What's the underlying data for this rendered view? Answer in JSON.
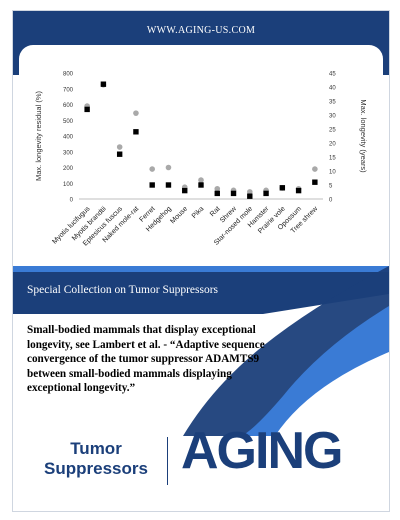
{
  "header": {
    "url": "WWW.AGING-US.COM"
  },
  "colors": {
    "brand_blue": "#1b3f7a",
    "light_blue": "#3a7bd5",
    "grey_marker": "#a9a9a9",
    "black_marker": "#000000"
  },
  "chart_data": {
    "type": "scatter",
    "categories": [
      "Myotis lucifugus",
      "Myotis brandtii",
      "Eptesicus fuscus",
      "Naked mole-rat",
      "Ferret",
      "Hedgehog",
      "Mouse",
      "Pika",
      "Rat",
      "Shrew",
      "Star-nosed mole",
      "Hamster",
      "Prairie vole",
      "Opossum",
      "Tree shrew"
    ],
    "ylabel": "Max. longevity residual (%)",
    "y2label": "Max. longevity (years)",
    "ylim": [
      0,
      800
    ],
    "y2lim": [
      0,
      45
    ],
    "yticks": [
      "0",
      "100",
      "200",
      "300",
      "400",
      "500",
      "600",
      "700",
      "800"
    ],
    "y2ticks": [
      "0",
      "5",
      "10",
      "15",
      "20",
      "25",
      "30",
      "35",
      "40",
      "45"
    ],
    "series": [
      {
        "marker": "circle",
        "color": "#a9a9a9",
        "axis": "left",
        "values": [
          590,
          725,
          330,
          545,
          190,
          200,
          75,
          120,
          65,
          55,
          45,
          55,
          70,
          65,
          190
        ]
      },
      {
        "marker": "square",
        "color": "#000000",
        "axis": "right",
        "values": [
          32,
          41,
          16,
          24,
          5,
          5,
          3,
          5,
          2,
          2,
          1,
          2,
          4,
          3,
          6
        ]
      }
    ],
    "grid": false,
    "legend": "none"
  },
  "collection": {
    "title": "Special Collection on Tumor Suppressors"
  },
  "abstract": {
    "text": "Small-bodied mammals that display exceptional longevity, see Lambert et al. - “Adaptive sequence convergence of the tumor suppressor ADAMTS9 between small-bodied mammals displaying exceptional longevity.”"
  },
  "footer": {
    "topic_line1": "Tumor",
    "topic_line2": "Suppressors",
    "logo": "AGING"
  }
}
